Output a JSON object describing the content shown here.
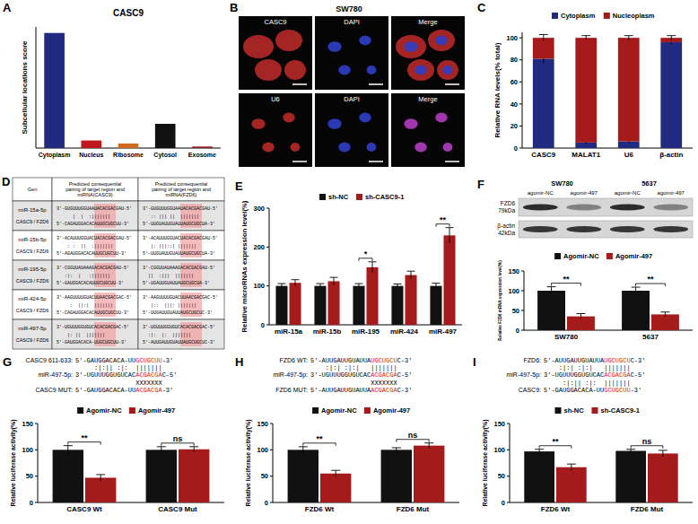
{
  "chart_data": [
    {
      "panel": "A",
      "type": "bar",
      "title": "CASC9",
      "y_label": "Subcellular locations score",
      "categories": [
        "Cytoplasm",
        "Nucleus",
        "Ribosome",
        "Cytosol",
        "Exosome"
      ],
      "values": [
        0.76,
        0.05,
        0.03,
        0.16,
        0.01
      ],
      "colors": [
        "#1f2a80",
        "#c0191c",
        "#d2691e",
        "#111111",
        "#8b1a1a"
      ],
      "ylim": [
        0,
        0.8
      ],
      "tick_labels": "x"
    },
    {
      "panel": "C",
      "type": "bar",
      "stacked": true,
      "y_label": "Relative RNA levels(% total)",
      "categories": [
        "CASC9",
        "MALAT1",
        "U6",
        "β-actin"
      ],
      "series": [
        {
          "name": "Cytoplasm",
          "color": "#1f2a80",
          "values": [
            81,
            5,
            6,
            96
          ],
          "errors": [
            4,
            1,
            1,
            1.5
          ]
        },
        {
          "name": "Nucleoplasm",
          "color": "#a51b1b",
          "values": [
            19,
            95,
            94,
            4
          ],
          "errors": [
            3,
            2,
            2,
            2
          ]
        }
      ],
      "ylim": [
        0,
        105
      ],
      "yticks": [
        0,
        20,
        40,
        60,
        80,
        100
      ],
      "legend": "top"
    },
    {
      "panel": "E",
      "type": "bar",
      "y_label": "Relative microRNAs expression level(%)",
      "categories": [
        "miR-15a",
        "miR-15b",
        "miR-195",
        "miR-424",
        "miR-497"
      ],
      "series": [
        {
          "name": "sh-NC",
          "color": "#111111",
          "values": [
            100,
            100,
            100,
            100,
            100
          ],
          "errors": [
            6,
            6,
            6,
            5,
            7
          ]
        },
        {
          "name": "sh-CASC9-1",
          "color": "#a51b1b",
          "values": [
            108,
            112,
            148,
            128,
            230
          ],
          "errors": [
            8,
            10,
            14,
            10,
            20
          ]
        }
      ],
      "annotations": [
        null,
        null,
        "*",
        null,
        "**"
      ],
      "ylim": [
        0,
        300
      ],
      "yticks": [
        0,
        100,
        200,
        300
      ],
      "legend": "top"
    },
    {
      "type": "bar",
      "y_label": "Relative FZD6 mRNA expression level(%)",
      "categories": [
        "SW780",
        "5637"
      ],
      "series": [
        {
          "name": "Agomir-NC",
          "color": "#111111",
          "values": [
            100,
            100
          ],
          "errors": [
            10,
            9
          ]
        },
        {
          "name": "Agomir-497",
          "color": "#a51b1b",
          "values": [
            35,
            40
          ],
          "errors": [
            7,
            6
          ]
        }
      ],
      "annotations": [
        "**",
        "**"
      ],
      "ylim": [
        0,
        150
      ],
      "yticks": [
        0,
        50,
        100,
        150
      ],
      "legend": "top"
    },
    {
      "panel": "G",
      "type": "bar",
      "y_label": "Relative luciferase activity(%)",
      "categories": [
        "CASC9 Wt",
        "CASC9 Mut"
      ],
      "series": [
        {
          "name": "Agomir-NC",
          "color": "#111111",
          "values": [
            100,
            100
          ],
          "errors": [
            8,
            6
          ]
        },
        {
          "name": "Agomir-497",
          "color": "#a51b1b",
          "values": [
            47,
            101
          ],
          "errors": [
            6,
            5
          ]
        }
      ],
      "annotations": [
        "**",
        "ns"
      ],
      "ylim": [
        0,
        150
      ],
      "yticks": [
        0,
        50,
        100,
        150
      ],
      "legend": "top",
      "sequence_lines": [
        {
          "label": "CASC9 611-633:",
          "prefix": "5'-GAUGGACACA-UU",
          "highlight": "GCUGCUU",
          "suffix": "-3'"
        },
        {
          "pairing": "     :|:|| :|:  |||||||"
        },
        {
          "label": "miR-497-5p:",
          "prefix": "3'-UGUUUGGUGUCAC",
          "highlight": "ACGACGA",
          "suffix": "C-5'"
        },
        {
          "pairing": "                XXXXXXX"
        },
        {
          "label": "CASC9 MUT:",
          "prefix": "5'-GAUGGACACA-UU",
          "highlight": "ACGACGA",
          "suffix": "-3'"
        }
      ]
    },
    {
      "panel": "H",
      "type": "bar",
      "y_label": "Relative luciferase activity(%)",
      "categories": [
        "FZD6 Wt",
        "FZD6 Mut"
      ],
      "series": [
        {
          "name": "Agomir-NC",
          "color": "#111111",
          "values": [
            100,
            100
          ],
          "errors": [
            6,
            4
          ]
        },
        {
          "name": "Agomir-497",
          "color": "#a51b1b",
          "values": [
            55,
            108
          ],
          "errors": [
            6,
            5
          ]
        }
      ],
      "annotations": [
        "**",
        "ns"
      ],
      "ylim": [
        0,
        150
      ],
      "yticks": [
        0,
        50,
        100,
        150
      ],
      "legend": "top",
      "sequence_lines": [
        {
          "label": "FZD6 WT:",
          "prefix": "5'-AUUGAUUGUAUUA",
          "highlight": "UGCUGCU",
          "suffix": "C-3'"
        },
        {
          "pairing": "    :|:| :|:|   |||||||"
        },
        {
          "label": "miR-497-5p:",
          "prefix": "3'-UGUUUGGUGUCAC",
          "highlight": "ACGACGA",
          "suffix": "C-5'"
        },
        {
          "pairing": "                XXXXXXX"
        },
        {
          "label": "FZD6 MUT:",
          "prefix": "5'-AUUGAUUGUAUUA",
          "highlight": "ACGACGA",
          "suffix": "C-3'"
        }
      ]
    },
    {
      "panel": "I",
      "type": "bar",
      "y_label": "Relative luciferase activity(%)",
      "categories": [
        "FZD6 Wt",
        "FZD6 Mut"
      ],
      "series": [
        {
          "name": "sh-NC",
          "color": "#111111",
          "values": [
            97,
            98
          ],
          "errors": [
            4,
            3
          ]
        },
        {
          "name": "sh-CASC9-1",
          "color": "#a51b1b",
          "values": [
            67,
            93
          ],
          "errors": [
            6,
            6
          ]
        }
      ],
      "annotations": [
        "**",
        "ns"
      ],
      "ylim": [
        0,
        150
      ],
      "yticks": [
        0,
        50,
        100,
        150
      ],
      "legend": "top",
      "sequence_lines": [
        {
          "label": "FZD6:",
          "prefix": "5'-AUUGAUUGUAUUA",
          "highlight": "UGCUGCU",
          "suffix": "C-3'"
        },
        {
          "pairing": "    :|:| :|:|   |||||||"
        },
        {
          "label": "miR-497-5p:",
          "prefix": "3'-UGUUUGGUGUCAC",
          "highlight": "ACGACGA",
          "suffix": "C-5'"
        },
        {
          "pairing": "     :|:|| :|:  |||||||"
        },
        {
          "label": "CASC9:",
          "prefix": "5'-GAUGGACACA-UU",
          "highlight": "GCUGCUU",
          "suffix": "-3'"
        }
      ]
    }
  ],
  "figure": {
    "microscopy": {
      "letter": "B",
      "title": "SW780",
      "rows": [
        {
          "labels": [
            "CASC9",
            "DAPI",
            "Merge"
          ]
        },
        {
          "labels": [
            "U6",
            "DAPI",
            "Merge"
          ]
        }
      ]
    },
    "table": {
      "letter": "D",
      "header": [
        "Gen",
        "Predicted consequential pairing of target region and miRNA(CASC9)",
        "Predicted consequential pairing of target region and miRNA(FZD6)"
      ],
      "rows": [
        {
          "name": "miR-15a-5p",
          "pair_label": "CASC9 / FZD6",
          "casc9": [
            "3'-GUGUUUGGUAAUACACGACGAU-5'",
            "      |  |  :|||||||",
            "5'-CAGAUGGACACAUUGCUGCUU-3'"
          ],
          "fzd6": [
            "3'-GUGUUUGGUAAUACACGACGAU-5'",
            "   :: ||| ||  |||||||",
            "5'-UUGUAUUGUAUUAUGCUGCUA-3'"
          ]
        },
        {
          "name": "miR-15b-5p",
          "pair_label": "CASC9 / FZD6",
          "casc9": [
            "3'-ACAUUUGGUACUACACGACGAU-5'",
            "    : :  ||  :|||||||",
            "5'-AGAUGGACACAUUGCUGCUU-3'"
          ],
          "fzd6": [
            "3'-ACAUUUGGUACUACACGACGAU-5'",
            "   |: |||::| |||||||",
            "5'-UUGUAUUGUAUUAUGCUGCUA-3'"
          ]
        },
        {
          "name": "miR-195-5p",
          "pair_label": "CASC9 / FZD6",
          "casc9": [
            "3'-CGGUUAUAAAGACACGACGAU-5'",
            "   :|:  |   :|||||||",
            "5'-GAUGGACACAUUGCUGCUU-3'"
          ],
          "fzd6": [
            "3'-CGGUUAUAAAGACACGACGAU-5'",
            "  ||  :|||  |||||||",
            "5'-UGAUUGUAUUAUGCUGCUA-3'"
          ]
        },
        {
          "name": "miR-424-5p",
          "pair_label": "CASC9 / FZD6",
          "casc9": [
            "3'-AAGUUUUGUACUUAACGACGAC-5'",
            "     :  ||:|  |||||||",
            "5'-CAGAUGGACACAUUGCUGCUU-3'"
          ],
          "fzd6": [
            "3'-AAGUUUUGUACUUAACGACGAC-5'",
            "   |::  |||: |||||||",
            "5'-UUGAUUGUAUUAUGCUGCUC-3'"
          ]
        },
        {
          "name": "miR-497-5p",
          "pair_label": "CASC9 / FZD6",
          "casc9": [
            "3'-UGUUUGGUGUCACACGACGAC-5'",
            "    |: ||  |||||||",
            "5'-GAUGGACACA-UUGCUGCUU-3'"
          ],
          "fzd6": [
            "3'-UGUUUGGUGUCACACGACGAC-5'",
            "  :|:  |:  |||||||",
            "5'-AUUGAUUGUAUUAUGCUGCUC-3'"
          ]
        }
      ]
    },
    "blot": {
      "letter": "F",
      "cell_lines": [
        "SW780",
        "5637"
      ],
      "lanes": [
        "agomir-NC",
        "agomir-497",
        "agomir-NC",
        "agomir-497"
      ],
      "bands": [
        {
          "name": "FZD6",
          "size": "79kDa"
        },
        {
          "name": "β-actin",
          "size": "42kDa"
        }
      ]
    }
  }
}
